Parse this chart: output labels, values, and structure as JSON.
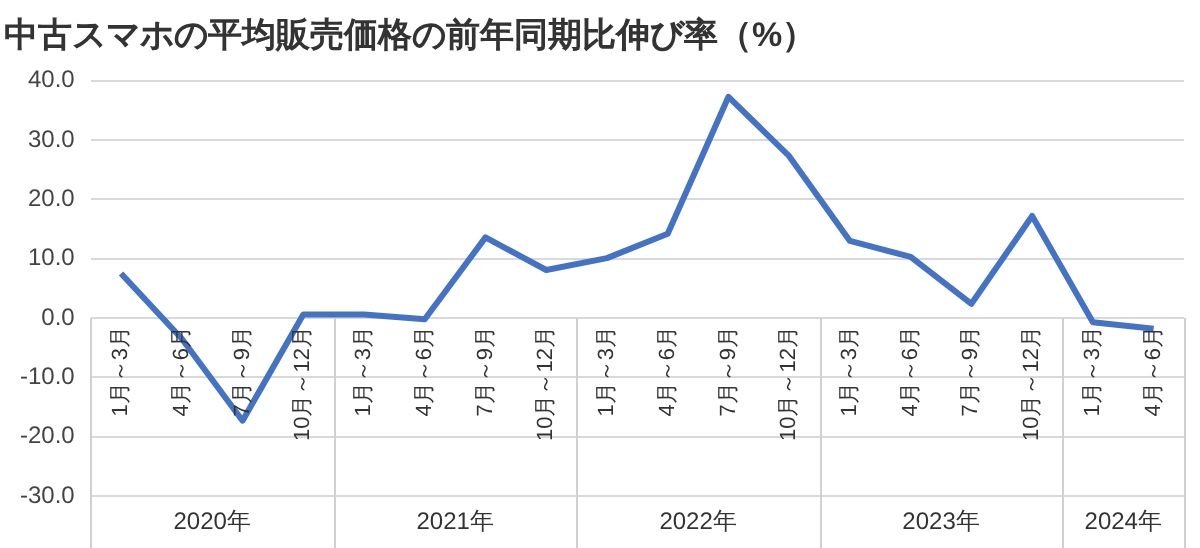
{
  "chart_data": {
    "type": "line",
    "title": "中古スマホの平均販売価格の前年同期比伸び率（%）",
    "categories": [
      "1月～3月",
      "4月～6月",
      "7月～9月",
      "10月～12月",
      "1月～3月",
      "4月～6月",
      "7月～9月",
      "10月～12月",
      "1月～3月",
      "4月～6月",
      "7月～9月",
      "10月～12月",
      "1月～3月",
      "4月～6月",
      "7月～9月",
      "10月～12月",
      "1月～3月",
      "4月～6月"
    ],
    "series": [
      {
        "color": "#4472c4",
        "values": [
          7.5,
          -3.5,
          -17.3,
          0.6,
          0.6,
          -0.2,
          13.6,
          8.1,
          10.1,
          14.2,
          37.3,
          27.3,
          13.0,
          10.3,
          2.4,
          17.2,
          -0.7,
          -1.8
        ]
      }
    ],
    "annotations": [
      "2020年",
      "2021年",
      "2022年",
      "2023年",
      "2024年"
    ],
    "ylim": [
      -30,
      40
    ],
    "yticks": [
      {
        "value": -30,
        "label": "-30.0"
      },
      {
        "value": -20,
        "label": "-20.0"
      },
      {
        "value": -10,
        "label": "-10.0"
      },
      {
        "value": 0,
        "label": "0.0"
      },
      {
        "value": 10,
        "label": "10.0"
      },
      {
        "value": 20,
        "label": "20.0"
      },
      {
        "value": 30,
        "label": "30.0"
      },
      {
        "value": 40,
        "label": "40.0"
      }
    ],
    "grid": "y",
    "legend": false,
    "marker": "none",
    "line_style": "solid"
  }
}
